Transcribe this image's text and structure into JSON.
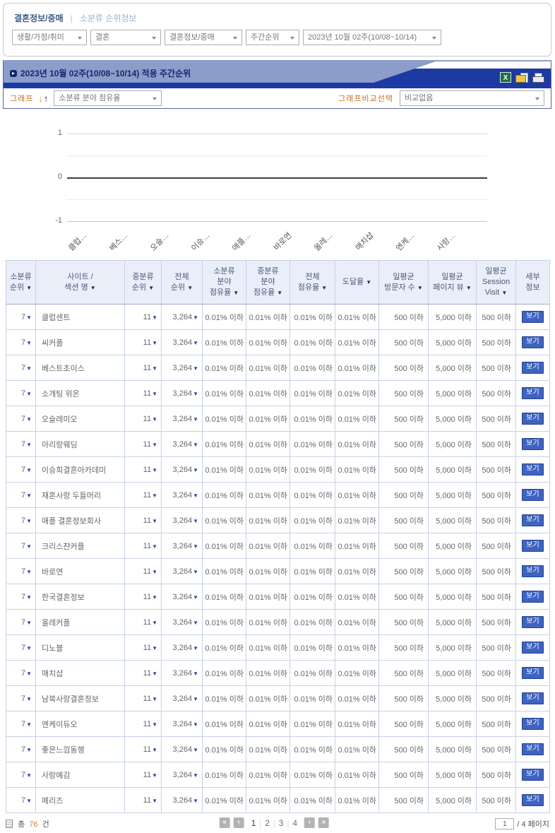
{
  "filters": {
    "title": "결혼정보/중매",
    "separator": "|",
    "subtitle": "소분류 순위정보",
    "selects": [
      {
        "value": "생활/가정/취미"
      },
      {
        "value": "결혼"
      },
      {
        "value": "결혼정보/중매"
      },
      {
        "value": "주간순위"
      },
      {
        "value": "2023년 10월 02주(10/08~10/14)"
      }
    ]
  },
  "panel": {
    "bullet_glyph": "▸",
    "title": "2023년 10월 02주(10/08~10/14) 적용 주간순위",
    "graph_label": "그래프",
    "arrow_down_glyph": "↓",
    "arrow_up_glyph": "↑",
    "graph_select_value": "소분류 분야 점유율",
    "compare_label": "그래프비교선택",
    "compare_select_value": "비교없음",
    "accent_orange": "#c9701d",
    "bar_blue": "#1c3aa2",
    "tab_blue": "#8c9dca"
  },
  "chart_data": {
    "type": "line",
    "title": "",
    "x_labels": [
      "클럽…",
      "베스…",
      "오슬…",
      "이승…",
      "애플…",
      "바로연",
      "올레…",
      "매치샵",
      "엔케…",
      "사랑…"
    ],
    "yticks": [
      "1",
      "0",
      "-1"
    ],
    "ylim": [
      -1,
      1
    ],
    "series": [],
    "grid": "horizontal gridlines, zero axis emphasized",
    "note": "chart axes shown with no plotted data series"
  },
  "table": {
    "sort_arrow": "▼",
    "headers": [
      {
        "lines": [
          "소분류",
          "순위"
        ],
        "sort": true
      },
      {
        "lines": [
          "사이트 /",
          "섹션 명"
        ],
        "sort": true
      },
      {
        "lines": [
          "중분류",
          "순위"
        ],
        "sort": true
      },
      {
        "lines": [
          "전체",
          "순위"
        ],
        "sort": true
      },
      {
        "lines": [
          "소분류",
          "분야",
          "점유율"
        ],
        "sort": true
      },
      {
        "lines": [
          "중분류",
          "분야",
          "점유율"
        ],
        "sort": true
      },
      {
        "lines": [
          "전체",
          "점유율"
        ],
        "sort": true
      },
      {
        "lines": [
          "도달율"
        ],
        "sort": true
      },
      {
        "lines": [
          "일평균",
          "방문자 수"
        ],
        "sort": true
      },
      {
        "lines": [
          "일평균",
          "페이지 뷰"
        ],
        "sort": true
      },
      {
        "lines": [
          "일평균",
          "Session",
          "Visit"
        ],
        "sort": true
      },
      {
        "lines": [
          "세부",
          "정보"
        ],
        "sort": false
      }
    ],
    "rows": [
      {
        "rank": "7",
        "site": "클럽센트",
        "mid_rank": "11",
        "total_rank": "3,264",
        "sub_share": "0.01% 이하",
        "mid_share": "0.01% 이하",
        "total_share": "0.01% 이하",
        "reach": "0.01% 이하",
        "visitors": "500 이하",
        "pageviews": "5,000 이하",
        "session": "500 이하",
        "detail": "보기"
      },
      {
        "rank": "7",
        "site": "씨커플",
        "mid_rank": "11",
        "total_rank": "3,264",
        "sub_share": "0.01% 이하",
        "mid_share": "0.01% 이하",
        "total_share": "0.01% 이하",
        "reach": "0.01% 이하",
        "visitors": "500 이하",
        "pageviews": "5,000 이하",
        "session": "500 이하",
        "detail": "보기"
      },
      {
        "rank": "7",
        "site": "베스트초이스",
        "mid_rank": "11",
        "total_rank": "3,264",
        "sub_share": "0.01% 이하",
        "mid_share": "0.01% 이하",
        "total_share": "0.01% 이하",
        "reach": "0.01% 이하",
        "visitors": "500 이하",
        "pageviews": "5,000 이하",
        "session": "500 이하",
        "detail": "보기"
      },
      {
        "rank": "7",
        "site": "소개팅 위온",
        "mid_rank": "11",
        "total_rank": "3,264",
        "sub_share": "0.01% 이하",
        "mid_share": "0.01% 이하",
        "total_share": "0.01% 이하",
        "reach": "0.01% 이하",
        "visitors": "500 이하",
        "pageviews": "5,000 이하",
        "session": "500 이하",
        "detail": "보기"
      },
      {
        "rank": "7",
        "site": "오슬레미오",
        "mid_rank": "11",
        "total_rank": "3,264",
        "sub_share": "0.01% 이하",
        "mid_share": "0.01% 이하",
        "total_share": "0.01% 이하",
        "reach": "0.01% 이하",
        "visitors": "500 이하",
        "pageviews": "5,000 이하",
        "session": "500 이하",
        "detail": "보기"
      },
      {
        "rank": "7",
        "site": "아리랑웨딩",
        "mid_rank": "11",
        "total_rank": "3,264",
        "sub_share": "0.01% 이하",
        "mid_share": "0.01% 이하",
        "total_share": "0.01% 이하",
        "reach": "0.01% 이하",
        "visitors": "500 이하",
        "pageviews": "5,000 이하",
        "session": "500 이하",
        "detail": "보기"
      },
      {
        "rank": "7",
        "site": "이승희결혼아카데미",
        "mid_rank": "11",
        "total_rank": "3,264",
        "sub_share": "0.01% 이하",
        "mid_share": "0.01% 이하",
        "total_share": "0.01% 이하",
        "reach": "0.01% 이하",
        "visitors": "500 이하",
        "pageviews": "5,000 이하",
        "session": "500 이하",
        "detail": "보기"
      },
      {
        "rank": "7",
        "site": "재혼사랑 두들머리",
        "mid_rank": "11",
        "total_rank": "3,264",
        "sub_share": "0.01% 이하",
        "mid_share": "0.01% 이하",
        "total_share": "0.01% 이하",
        "reach": "0.01% 이하",
        "visitors": "500 이하",
        "pageviews": "5,000 이하",
        "session": "500 이하",
        "detail": "보기"
      },
      {
        "rank": "7",
        "site": "애플 결혼정보회사",
        "mid_rank": "11",
        "total_rank": "3,264",
        "sub_share": "0.01% 이하",
        "mid_share": "0.01% 이하",
        "total_share": "0.01% 이하",
        "reach": "0.01% 이하",
        "visitors": "500 이하",
        "pageviews": "5,000 이하",
        "session": "500 이하",
        "detail": "보기"
      },
      {
        "rank": "7",
        "site": "크리스챤커플",
        "mid_rank": "11",
        "total_rank": "3,264",
        "sub_share": "0.01% 이하",
        "mid_share": "0.01% 이하",
        "total_share": "0.01% 이하",
        "reach": "0.01% 이하",
        "visitors": "500 이하",
        "pageviews": "5,000 이하",
        "session": "500 이하",
        "detail": "보기"
      },
      {
        "rank": "7",
        "site": "바로연",
        "mid_rank": "11",
        "total_rank": "3,264",
        "sub_share": "0.01% 이하",
        "mid_share": "0.01% 이하",
        "total_share": "0.01% 이하",
        "reach": "0.01% 이하",
        "visitors": "500 이하",
        "pageviews": "5,000 이하",
        "session": "500 이하",
        "detail": "보기"
      },
      {
        "rank": "7",
        "site": "한국결혼정보",
        "mid_rank": "11",
        "total_rank": "3,264",
        "sub_share": "0.01% 이하",
        "mid_share": "0.01% 이하",
        "total_share": "0.01% 이하",
        "reach": "0.01% 이하",
        "visitors": "500 이하",
        "pageviews": "5,000 이하",
        "session": "500 이하",
        "detail": "보기"
      },
      {
        "rank": "7",
        "site": "올레커플",
        "mid_rank": "11",
        "total_rank": "3,264",
        "sub_share": "0.01% 이하",
        "mid_share": "0.01% 이하",
        "total_share": "0.01% 이하",
        "reach": "0.01% 이하",
        "visitors": "500 이하",
        "pageviews": "5,000 이하",
        "session": "500 이하",
        "detail": "보기"
      },
      {
        "rank": "7",
        "site": "디노블",
        "mid_rank": "11",
        "total_rank": "3,264",
        "sub_share": "0.01% 이하",
        "mid_share": "0.01% 이하",
        "total_share": "0.01% 이하",
        "reach": "0.01% 이하",
        "visitors": "500 이하",
        "pageviews": "5,000 이하",
        "session": "500 이하",
        "detail": "보기"
      },
      {
        "rank": "7",
        "site": "매치샵",
        "mid_rank": "11",
        "total_rank": "3,264",
        "sub_share": "0.01% 이하",
        "mid_share": "0.01% 이하",
        "total_share": "0.01% 이하",
        "reach": "0.01% 이하",
        "visitors": "500 이하",
        "pageviews": "5,000 이하",
        "session": "500 이하",
        "detail": "보기"
      },
      {
        "rank": "7",
        "site": "남북사랑결혼정보",
        "mid_rank": "11",
        "total_rank": "3,264",
        "sub_share": "0.01% 이하",
        "mid_share": "0.01% 이하",
        "total_share": "0.01% 이하",
        "reach": "0.01% 이하",
        "visitors": "500 이하",
        "pageviews": "5,000 이하",
        "session": "500 이하",
        "detail": "보기"
      },
      {
        "rank": "7",
        "site": "엔케이듀오",
        "mid_rank": "11",
        "total_rank": "3,264",
        "sub_share": "0.01% 이하",
        "mid_share": "0.01% 이하",
        "total_share": "0.01% 이하",
        "reach": "0.01% 이하",
        "visitors": "500 이하",
        "pageviews": "5,000 이하",
        "session": "500 이하",
        "detail": "보기"
      },
      {
        "rank": "7",
        "site": "좋은느낌동행",
        "mid_rank": "11",
        "total_rank": "3,264",
        "sub_share": "0.01% 이하",
        "mid_share": "0.01% 이하",
        "total_share": "0.01% 이하",
        "reach": "0.01% 이하",
        "visitors": "500 이하",
        "pageviews": "5,000 이하",
        "session": "500 이하",
        "detail": "보기"
      },
      {
        "rank": "7",
        "site": "사랑예감",
        "mid_rank": "11",
        "total_rank": "3,264",
        "sub_share": "0.01% 이하",
        "mid_share": "0.01% 이하",
        "total_share": "0.01% 이하",
        "reach": "0.01% 이하",
        "visitors": "500 이하",
        "pageviews": "5,000 이하",
        "session": "500 이하",
        "detail": "보기"
      },
      {
        "rank": "7",
        "site": "메리즈",
        "mid_rank": "11",
        "total_rank": "3,264",
        "sub_share": "0.01% 이하",
        "mid_share": "0.01% 이하",
        "total_share": "0.01% 이하",
        "reach": "0.01% 이하",
        "visitors": "500 이하",
        "pageviews": "5,000 이하",
        "session": "500 이하",
        "detail": "보기"
      }
    ]
  },
  "footer": {
    "count_prefix": "총",
    "count_value": "76",
    "count_suffix": "건",
    "pager": {
      "first": "«",
      "prev": "‹",
      "next": "›",
      "last": "»",
      "separator": "|",
      "pages": [
        "1",
        "2",
        "3",
        "4"
      ],
      "current": "1"
    },
    "page_input_value": "1",
    "page_total_label": "/ 4 페이지"
  }
}
